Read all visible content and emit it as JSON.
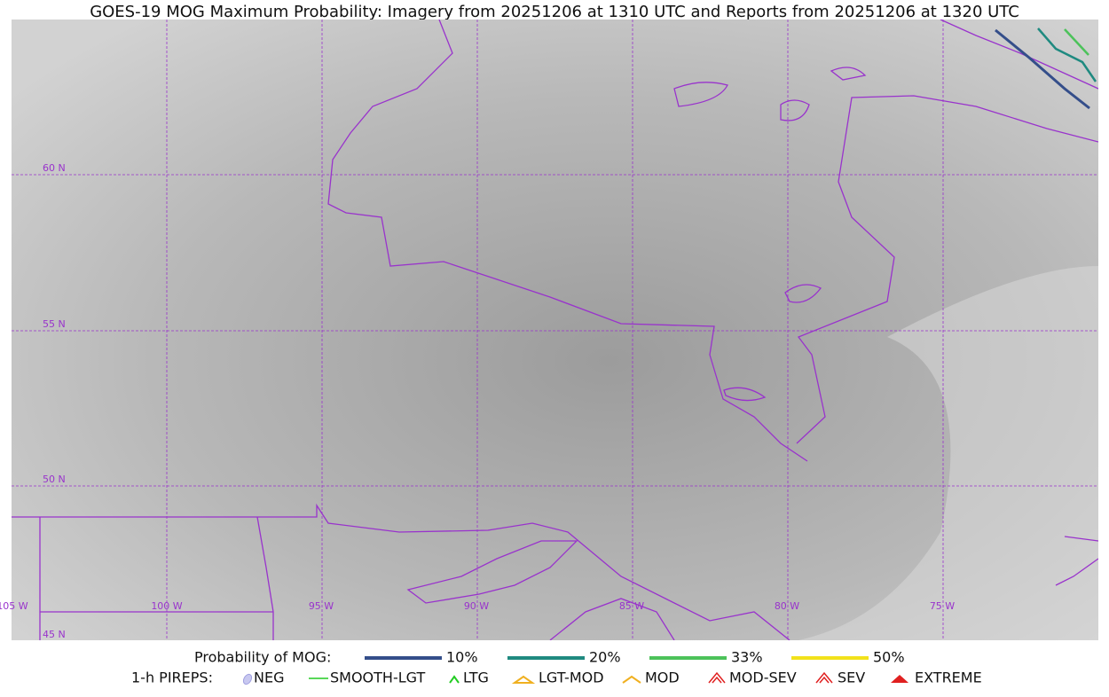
{
  "title": "GOES-19 MOG Maximum Probability: Imagery from 20251206 at 1310 UTC and Reports from 20251206 at 1320 UTC",
  "grid_labels": {
    "latitudes": [
      "60 N",
      "55 N",
      "50 N",
      "45 N"
    ],
    "longitudes": [
      "105 W",
      "100 W",
      "95 W",
      "90 W",
      "85 W",
      "80 W",
      "75 W"
    ]
  },
  "legend": {
    "probability_title": "Probability of MOG:",
    "probability_items": [
      {
        "label": "10%",
        "color": "#344e8a"
      },
      {
        "label": "20%",
        "color": "#1f8a80"
      },
      {
        "label": "33%",
        "color": "#4cc25a"
      },
      {
        "label": "50%",
        "color": "#f2e21a"
      }
    ],
    "pireps_title": "1-h PIREPS:",
    "pireps_items": [
      "NEG",
      "SMOOTH-LGT",
      "LTG",
      "LGT-MOD",
      "MOD",
      "MOD-SEV",
      "SEV",
      "EXTREME"
    ]
  }
}
